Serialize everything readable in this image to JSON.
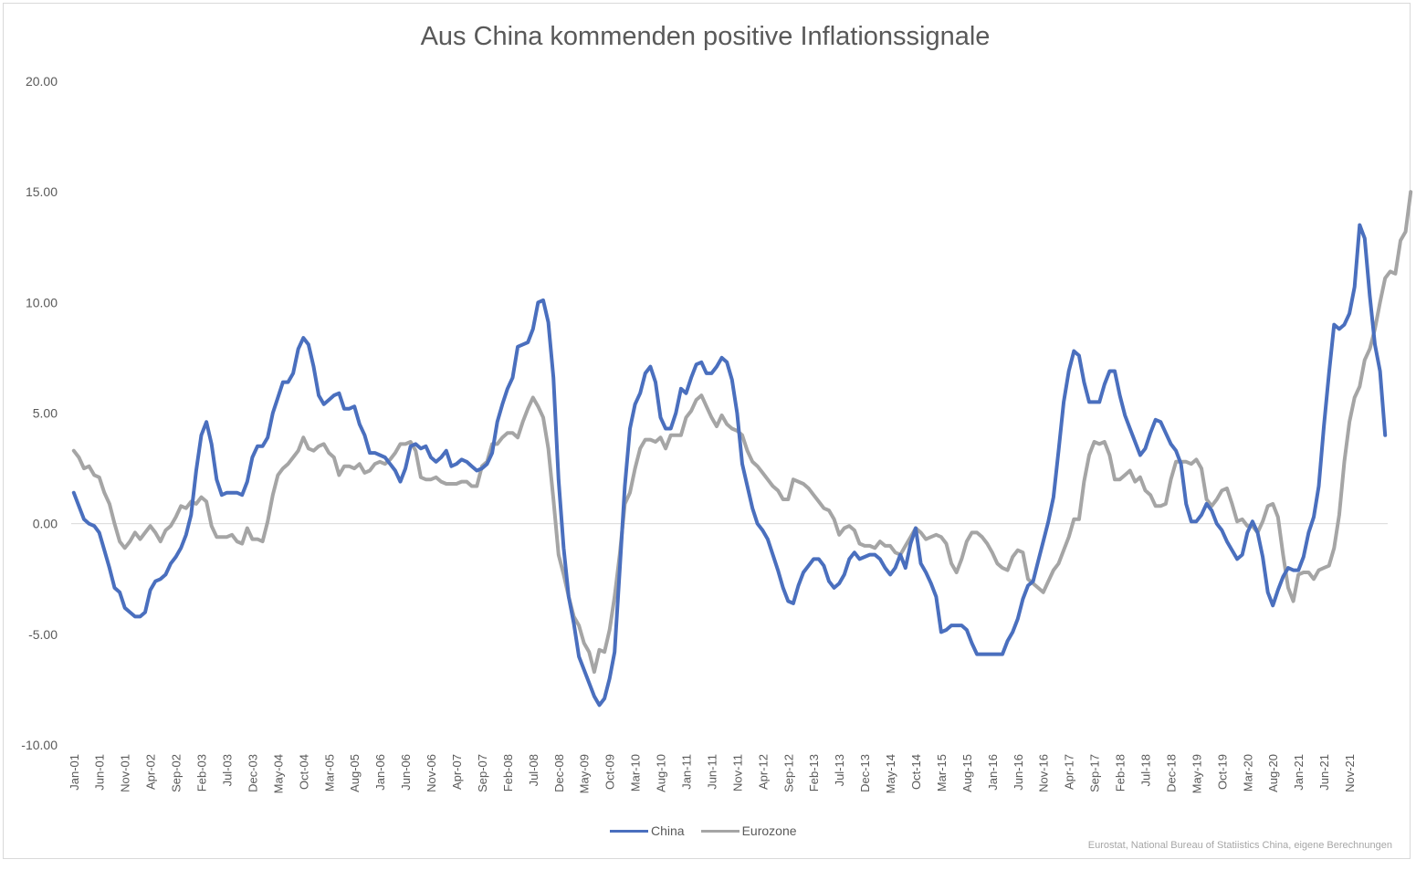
{
  "chart_data": {
    "type": "line",
    "title": "Aus China kommenden positive Inflationssignale",
    "source": "Eurostat, National Bureau of Statiistics China, eigene Berechnungen",
    "ylim": [
      -10,
      20
    ],
    "yticks": [
      "20.00",
      "15.00",
      "10.00",
      "5.00",
      "0.00",
      "-5.00",
      "-10.00"
    ],
    "x_start": "Jan-01",
    "x_tick_labels": [
      "Jan-01",
      "Jun-01",
      "Nov-01",
      "Apr-02",
      "Sep-02",
      "Feb-03",
      "Jul-03",
      "Dec-03",
      "May-04",
      "Oct-04",
      "Mar-05",
      "Aug-05",
      "Jan-06",
      "Jun-06",
      "Nov-06",
      "Apr-07",
      "Sep-07",
      "Feb-08",
      "Jul-08",
      "Dec-08",
      "May-09",
      "Oct-09",
      "Mar-10",
      "Aug-10",
      "Jan-11",
      "Jun-11",
      "Nov-11",
      "Apr-12",
      "Sep-12",
      "Feb-13",
      "Jul-13",
      "Dec-13",
      "May-14",
      "Oct-14",
      "Mar-15",
      "Aug-15",
      "Jan-16",
      "Jun-16",
      "Nov-16",
      "Apr-17",
      "Sep-17",
      "Feb-18",
      "Jul-18",
      "Dec-18",
      "May-19",
      "Oct-19",
      "Mar-20",
      "Aug-20",
      "Jan-21",
      "Jun-21",
      "Nov-21"
    ],
    "legend": "bottom-center",
    "grid": false,
    "series": [
      {
        "name": "China",
        "color": "#4a6fbe",
        "values": [
          1.4,
          0.8,
          0.2,
          0.0,
          -0.1,
          -0.4,
          -1.2,
          -2.0,
          -2.9,
          -3.1,
          -3.8,
          -4.0,
          -4.2,
          -4.2,
          -4.0,
          -3.0,
          -2.6,
          -2.5,
          -2.3,
          -1.8,
          -1.5,
          -1.1,
          -0.5,
          0.4,
          2.4,
          4.0,
          4.6,
          3.6,
          2.0,
          1.3,
          1.4,
          1.4,
          1.4,
          1.3,
          1.9,
          3.0,
          3.5,
          3.5,
          3.9,
          5.0,
          5.7,
          6.4,
          6.4,
          6.8,
          7.9,
          8.4,
          8.1,
          7.1,
          5.8,
          5.4,
          5.6,
          5.8,
          5.9,
          5.2,
          5.2,
          5.3,
          4.5,
          4.0,
          3.2,
          3.2,
          3.1,
          3.0,
          2.7,
          2.4,
          1.9,
          2.5,
          3.5,
          3.6,
          3.4,
          3.5,
          3.0,
          2.8,
          3.0,
          3.3,
          2.6,
          2.7,
          2.9,
          2.8,
          2.6,
          2.4,
          2.5,
          2.7,
          3.2,
          4.6,
          5.4,
          6.1,
          6.6,
          8.0,
          8.1,
          8.2,
          8.8,
          10.0,
          10.1,
          9.1,
          6.6,
          2.0,
          -1.1,
          -3.3,
          -4.5,
          -6.0,
          -6.6,
          -7.2,
          -7.8,
          -8.2,
          -7.9,
          -7.0,
          -5.8,
          -2.1,
          1.7,
          4.3,
          5.4,
          5.9,
          6.8,
          7.1,
          6.4,
          4.8,
          4.3,
          4.3,
          5.0,
          6.1,
          5.9,
          6.6,
          7.2,
          7.3,
          6.8,
          6.8,
          7.1,
          7.5,
          7.3,
          6.5,
          5.0,
          2.7,
          1.7,
          0.7,
          0.0,
          -0.3,
          -0.7,
          -1.4,
          -2.1,
          -2.9,
          -3.5,
          -3.6,
          -2.8,
          -2.2,
          -1.9,
          -1.6,
          -1.6,
          -1.9,
          -2.6,
          -2.9,
          -2.7,
          -2.3,
          -1.6,
          -1.3,
          -1.6,
          -1.5,
          -1.4,
          -1.4,
          -1.6,
          -2.0,
          -2.3,
          -2.0,
          -1.4,
          -2.0,
          -0.9,
          -0.2,
          -1.8,
          -2.2,
          -2.7,
          -3.3,
          -4.9,
          -4.8,
          -4.6,
          -4.6,
          -4.6,
          -4.8,
          -5.4,
          -5.9,
          -5.9,
          -5.9,
          -5.9,
          -5.9,
          -5.9,
          -5.3,
          -4.9,
          -4.3,
          -3.4,
          -2.8,
          -2.6,
          -1.7,
          -0.8,
          0.1,
          1.2,
          3.3,
          5.5,
          6.9,
          7.8,
          7.6,
          6.4,
          5.5,
          5.5,
          5.5,
          6.3,
          6.9,
          6.9,
          5.8,
          4.9,
          4.3,
          3.7,
          3.1,
          3.4,
          4.1,
          4.7,
          4.6,
          4.1,
          3.6,
          3.3,
          2.7,
          0.9,
          0.1,
          0.1,
          0.4,
          0.9,
          0.6,
          0.0,
          -0.3,
          -0.8,
          -1.2,
          -1.6,
          -1.4,
          -0.4,
          0.1,
          -0.4,
          -1.5,
          -3.1,
          -3.7,
          -3.0,
          -2.4,
          -2.0,
          -2.1,
          -2.1,
          -1.5,
          -0.4,
          0.3,
          1.7,
          4.4,
          6.8,
          9.0,
          8.8,
          9.0,
          9.5,
          10.7,
          13.5,
          12.9,
          10.3,
          8.1,
          6.9,
          4.0
        ]
      },
      {
        "name": "Eurozone",
        "color": "#a5a5a5",
        "values": [
          3.3,
          3.0,
          2.5,
          2.6,
          2.2,
          2.1,
          1.4,
          0.9,
          0.0,
          -0.8,
          -1.1,
          -0.8,
          -0.4,
          -0.7,
          -0.4,
          -0.1,
          -0.4,
          -0.8,
          -0.3,
          -0.1,
          0.3,
          0.8,
          0.7,
          1.0,
          0.9,
          1.2,
          1.0,
          -0.1,
          -0.6,
          -0.6,
          -0.6,
          -0.5,
          -0.8,
          -0.9,
          -0.2,
          -0.7,
          -0.7,
          -0.8,
          0.1,
          1.3,
          2.2,
          2.5,
          2.7,
          3.0,
          3.3,
          3.9,
          3.4,
          3.3,
          3.5,
          3.6,
          3.2,
          3.0,
          2.2,
          2.6,
          2.6,
          2.5,
          2.7,
          2.3,
          2.4,
          2.7,
          2.8,
          2.7,
          2.9,
          3.2,
          3.6,
          3.6,
          3.7,
          3.3,
          2.1,
          2.0,
          2.0,
          2.1,
          1.9,
          1.8,
          1.8,
          1.8,
          1.9,
          1.9,
          1.7,
          1.7,
          2.6,
          2.8,
          3.6,
          3.6,
          3.9,
          4.1,
          4.1,
          3.9,
          4.6,
          5.2,
          5.7,
          5.3,
          4.8,
          3.4,
          1.1,
          -1.4,
          -2.3,
          -3.3,
          -4.2,
          -4.6,
          -5.4,
          -5.8,
          -6.7,
          -5.7,
          -5.8,
          -4.8,
          -3.3,
          -1.4,
          0.9,
          1.4,
          2.5,
          3.4,
          3.8,
          3.8,
          3.7,
          3.9,
          3.4,
          4.0,
          4.0,
          4.0,
          4.8,
          5.1,
          5.6,
          5.8,
          5.3,
          4.8,
          4.4,
          4.9,
          4.5,
          4.3,
          4.2,
          4.0,
          3.3,
          2.8,
          2.6,
          2.3,
          2.0,
          1.7,
          1.5,
          1.1,
          1.1,
          2.0,
          1.9,
          1.8,
          1.6,
          1.3,
          1.0,
          0.7,
          0.6,
          0.2,
          -0.5,
          -0.2,
          -0.1,
          -0.3,
          -0.9,
          -1.0,
          -1.0,
          -1.1,
          -0.8,
          -1.0,
          -1.0,
          -1.3,
          -1.4,
          -1.0,
          -0.6,
          -0.2,
          -0.4,
          -0.7,
          -0.6,
          -0.5,
          -0.6,
          -0.9,
          -1.8,
          -2.2,
          -1.6,
          -0.8,
          -0.4,
          -0.4,
          -0.6,
          -0.9,
          -1.3,
          -1.8,
          -2.0,
          -2.1,
          -1.5,
          -1.2,
          -1.3,
          -2.5,
          -2.7,
          -2.9,
          -3.1,
          -2.6,
          -2.1,
          -1.8,
          -1.2,
          -0.6,
          0.2,
          0.2,
          1.9,
          3.1,
          3.7,
          3.6,
          3.7,
          3.1,
          2.0,
          2.0,
          2.2,
          2.4,
          1.9,
          2.1,
          1.5,
          1.3,
          0.8,
          0.8,
          0.9,
          2.0,
          2.8,
          2.8,
          2.8,
          2.7,
          2.9,
          2.5,
          1.1,
          0.8,
          1.1,
          1.5,
          1.6,
          0.9,
          0.1,
          0.2,
          -0.1,
          -0.1,
          -0.4,
          0.1,
          0.8,
          0.9,
          0.3,
          -1.4,
          -2.9,
          -3.5,
          -2.3,
          -2.2,
          -2.2,
          -2.5,
          -2.1,
          -2.0,
          -1.9,
          -1.1,
          0.4,
          2.8,
          4.6,
          5.7,
          6.2,
          7.4,
          7.9,
          8.8,
          10.0,
          11.1,
          11.4,
          11.3,
          12.8,
          13.2,
          15.0
        ]
      }
    ]
  }
}
